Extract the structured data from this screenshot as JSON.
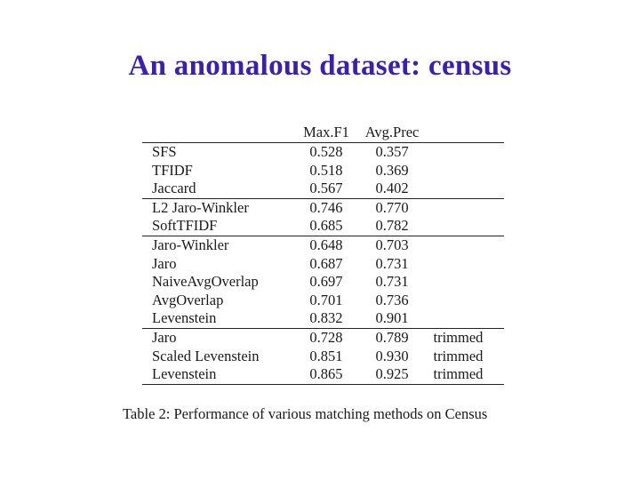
{
  "title": "An anomalous dataset: census",
  "table": {
    "headers": [
      "",
      "Max.F1",
      "Avg.Prec",
      ""
    ],
    "rows": [
      {
        "method": "SFS",
        "maxf1": "0.528",
        "avgprec": "0.357",
        "note": ""
      },
      {
        "method": "TFIDF",
        "maxf1": "0.518",
        "avgprec": "0.369",
        "note": ""
      },
      {
        "method": "Jaccard",
        "maxf1": "0.567",
        "avgprec": "0.402",
        "note": ""
      },
      {
        "method": "L2 Jaro-Winkler",
        "maxf1": "0.746",
        "avgprec": "0.770",
        "note": ""
      },
      {
        "method": "SoftTFIDF",
        "maxf1": "0.685",
        "avgprec": "0.782",
        "note": ""
      },
      {
        "method": "Jaro-Winkler",
        "maxf1": "0.648",
        "avgprec": "0.703",
        "note": ""
      },
      {
        "method": "Jaro",
        "maxf1": "0.687",
        "avgprec": "0.731",
        "note": ""
      },
      {
        "method": "NaiveAvgOverlap",
        "maxf1": "0.697",
        "avgprec": "0.731",
        "note": ""
      },
      {
        "method": "AvgOverlap",
        "maxf1": "0.701",
        "avgprec": "0.736",
        "note": ""
      },
      {
        "method": "Levenstein",
        "maxf1": "0.832",
        "avgprec": "0.901",
        "note": ""
      },
      {
        "method": "Jaro",
        "maxf1": "0.728",
        "avgprec": "0.789",
        "note": "trimmed"
      },
      {
        "method": "Scaled Levenstein",
        "maxf1": "0.851",
        "avgprec": "0.930",
        "note": "trimmed"
      },
      {
        "method": "Levenstein",
        "maxf1": "0.865",
        "avgprec": "0.925",
        "note": "trimmed"
      }
    ],
    "group_starts": [
      3,
      5,
      10
    ]
  },
  "caption": "Table 2: Performance of various matching methods on Census"
}
